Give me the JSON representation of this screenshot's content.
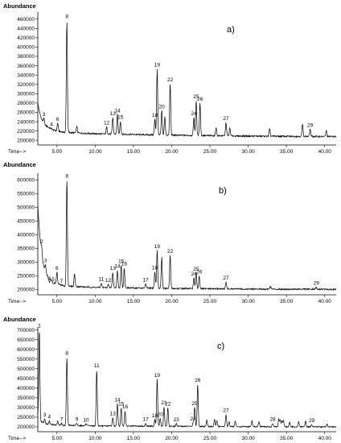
{
  "chart_data": [
    {
      "type": "line",
      "panel_label": "a)",
      "ylabel": "Abundance",
      "xlabel": "Time-->",
      "ylim": [
        190000,
        475000
      ],
      "xlim": [
        2.5,
        41.5
      ],
      "yticks": [
        200000,
        220000,
        240000,
        260000,
        280000,
        300000,
        320000,
        340000,
        360000,
        380000,
        400000,
        420000,
        440000,
        460000
      ],
      "ytick_labels": [
        "200000",
        "220000",
        "240000",
        "260000",
        "280000",
        "300000",
        "320000",
        "340000",
        "360000",
        "380000",
        "400000",
        "420000",
        "440000",
        "460000"
      ],
      "xticks": [
        5,
        10,
        15,
        20,
        25,
        30,
        35,
        40
      ],
      "xtick_labels": [
        "5.00",
        "10.00",
        "15.00",
        "20.00",
        "25.00",
        "30.00",
        "35.00",
        "40.00"
      ],
      "baseline": [
        [
          2.5,
          280000
        ],
        [
          2.7,
          262000
        ],
        [
          3.0,
          245000
        ],
        [
          3.5,
          232000
        ],
        [
          4.5,
          222000
        ],
        [
          6.0,
          217000
        ],
        [
          10.0,
          214000
        ],
        [
          20.0,
          211000
        ],
        [
          30.0,
          209000
        ],
        [
          41.5,
          208000
        ]
      ],
      "peaks": [
        {
          "label": "3",
          "x": 3.3,
          "y": 247000
        },
        {
          "label": "4",
          "x": 4.3,
          "y": 225000
        },
        {
          "label": "6",
          "x": 5.1,
          "y": 237000
        },
        {
          "label": "8",
          "x": 6.3,
          "y": 457000
        },
        {
          "label": "",
          "x": 7.6,
          "y": 230000
        },
        {
          "label": "12",
          "x": 11.5,
          "y": 229000
        },
        {
          "label": "13",
          "x": 12.3,
          "y": 249000
        },
        {
          "label": "14",
          "x": 12.9,
          "y": 255000
        },
        {
          "label": "15",
          "x": 13.3,
          "y": 241000
        },
        {
          "label": "18",
          "x": 17.8,
          "y": 245000
        },
        {
          "label": "19",
          "x": 18.1,
          "y": 353000
        },
        {
          "label": "20",
          "x": 18.7,
          "y": 263000
        },
        {
          "label": "",
          "x": 19.1,
          "y": 250000
        },
        {
          "label": "22",
          "x": 19.8,
          "y": 321000
        },
        {
          "label": "24",
          "x": 22.9,
          "y": 249000
        },
        {
          "label": "25",
          "x": 23.2,
          "y": 285000
        },
        {
          "label": "26",
          "x": 23.7,
          "y": 280000
        },
        {
          "label": "",
          "x": 25.8,
          "y": 228000
        },
        {
          "label": "27",
          "x": 27.1,
          "y": 238000
        },
        {
          "label": "",
          "x": 27.6,
          "y": 226000
        },
        {
          "label": "",
          "x": 32.8,
          "y": 224000
        },
        {
          "label": "",
          "x": 37.1,
          "y": 235000
        },
        {
          "label": "29",
          "x": 38.1,
          "y": 224000
        },
        {
          "label": "",
          "x": 40.2,
          "y": 221000
        }
      ]
    },
    {
      "type": "line",
      "panel_label": "b)",
      "ylabel": "Abundance",
      "xlabel": "Time-->",
      "ylim": [
        180000,
        625000
      ],
      "xlim": [
        2.5,
        41.5
      ],
      "yticks": [
        200000,
        250000,
        300000,
        350000,
        400000,
        450000,
        500000,
        550000,
        600000
      ],
      "ytick_labels": [
        "200000",
        "250000",
        "300000",
        "350000",
        "400000",
        "450000",
        "500000",
        "550000",
        "600000"
      ],
      "xticks": [
        5,
        10,
        15,
        20,
        25,
        30,
        35,
        40
      ],
      "xtick_labels": [
        "5.00",
        "10.00",
        "15.00",
        "20.00",
        "25.00",
        "30.00",
        "35.00",
        "40.00"
      ],
      "baseline": [
        [
          2.5,
          505000
        ],
        [
          2.7,
          420000
        ],
        [
          3.0,
          320000
        ],
        [
          3.5,
          260000
        ],
        [
          4.5,
          225000
        ],
        [
          6.0,
          212000
        ],
        [
          10.0,
          207000
        ],
        [
          20.0,
          203000
        ],
        [
          30.0,
          201000
        ],
        [
          41.5,
          200000
        ]
      ],
      "peaks": [
        {
          "label": "2",
          "x": 3.0,
          "y": 360000
        },
        {
          "label": "3",
          "x": 3.5,
          "y": 290000
        },
        {
          "label": "4",
          "x": 4.0,
          "y": 226000
        },
        {
          "label": "5",
          "x": 4.5,
          "y": 221000
        },
        {
          "label": "6",
          "x": 5.0,
          "y": 263000
        },
        {
          "label": "7",
          "x": 5.6,
          "y": 215000
        },
        {
          "label": "8",
          "x": 6.3,
          "y": 600000
        },
        {
          "label": "",
          "x": 7.3,
          "y": 258000
        },
        {
          "label": "11",
          "x": 10.8,
          "y": 223000
        },
        {
          "label": "12",
          "x": 11.7,
          "y": 218000
        },
        {
          "label": "13",
          "x": 12.3,
          "y": 262000
        },
        {
          "label": "14",
          "x": 12.9,
          "y": 270000
        },
        {
          "label": "15",
          "x": 13.4,
          "y": 287000
        },
        {
          "label": "16",
          "x": 13.8,
          "y": 278000
        },
        {
          "label": "17",
          "x": 16.6,
          "y": 220000
        },
        {
          "label": "18",
          "x": 17.8,
          "y": 264000
        },
        {
          "label": "19",
          "x": 18.1,
          "y": 342000
        },
        {
          "label": "",
          "x": 18.7,
          "y": 318000
        },
        {
          "label": "22",
          "x": 19.8,
          "y": 325000
        },
        {
          "label": "24",
          "x": 22.9,
          "y": 242000
        },
        {
          "label": "25",
          "x": 23.2,
          "y": 260000
        },
        {
          "label": "26",
          "x": 23.6,
          "y": 249000
        },
        {
          "label": "27",
          "x": 27.1,
          "y": 227000
        },
        {
          "label": "",
          "x": 32.9,
          "y": 212000
        },
        {
          "label": "29",
          "x": 38.9,
          "y": 208000
        }
      ]
    },
    {
      "type": "line",
      "panel_label": "c)",
      "ylabel": "Abundance",
      "xlabel": "Time-->",
      "ylim": [
        175000,
        715000
      ],
      "xlim": [
        2.5,
        41.5
      ],
      "yticks": [
        200000,
        250000,
        300000,
        350000,
        400000,
        450000,
        500000,
        550000,
        600000,
        650000,
        700000
      ],
      "ytick_labels": [
        "200000",
        "250000",
        "300000",
        "350000",
        "400000",
        "450000",
        "500000",
        "550000",
        "600000",
        "650000",
        "700000"
      ],
      "xticks": [
        5,
        10,
        15,
        20,
        25,
        30,
        35,
        40
      ],
      "xtick_labels": [
        "5.00",
        "10.00",
        "15.00",
        "20.00",
        "25.00",
        "30.00",
        "35.00",
        "40.00"
      ],
      "baseline": [
        [
          2.5,
          260000
        ],
        [
          2.8,
          232000
        ],
        [
          3.5,
          215000
        ],
        [
          5.0,
          209000
        ],
        [
          10.0,
          205000
        ],
        [
          20.0,
          203000
        ],
        [
          30.0,
          201000
        ],
        [
          41.5,
          200000
        ]
      ],
      "peaks": [
        {
          "label": "1",
          "x": 2.7,
          "y": 700000
        },
        {
          "label": "3",
          "x": 3.4,
          "y": 241000
        },
        {
          "label": "4",
          "x": 4.0,
          "y": 231000
        },
        {
          "label": "",
          "x": 5.1,
          "y": 229000
        },
        {
          "label": "7",
          "x": 5.6,
          "y": 218000
        },
        {
          "label": "8",
          "x": 6.3,
          "y": 560000
        },
        {
          "label": "9",
          "x": 7.6,
          "y": 218000
        },
        {
          "label": "10",
          "x": 8.8,
          "y": 215000
        },
        {
          "label": "11",
          "x": 10.2,
          "y": 495000
        },
        {
          "label": "13",
          "x": 12.3,
          "y": 248000
        },
        {
          "label": "14",
          "x": 12.9,
          "y": 318000
        },
        {
          "label": "15",
          "x": 13.4,
          "y": 297000
        },
        {
          "label": "16",
          "x": 13.9,
          "y": 282000
        },
        {
          "label": "17",
          "x": 16.6,
          "y": 219000
        },
        {
          "label": "18",
          "x": 17.8,
          "y": 238000
        },
        {
          "label": "19",
          "x": 18.1,
          "y": 445000
        },
        {
          "label": "20",
          "x": 18.5,
          "y": 243000
        },
        {
          "label": "21",
          "x": 19.0,
          "y": 303000
        },
        {
          "label": "22",
          "x": 19.5,
          "y": 298000
        },
        {
          "label": "23",
          "x": 20.6,
          "y": 217000
        },
        {
          "label": "24",
          "x": 22.8,
          "y": 221000
        },
        {
          "label": "25",
          "x": 23.0,
          "y": 300000
        },
        {
          "label": "26",
          "x": 23.4,
          "y": 420000
        },
        {
          "label": "",
          "x": 24.6,
          "y": 235000
        },
        {
          "label": "",
          "x": 25.6,
          "y": 240000
        },
        {
          "label": "",
          "x": 25.9,
          "y": 232000
        },
        {
          "label": "27",
          "x": 27.1,
          "y": 265000
        },
        {
          "label": "",
          "x": 27.5,
          "y": 228000
        },
        {
          "label": "",
          "x": 28.3,
          "y": 232000
        },
        {
          "label": "",
          "x": 30.5,
          "y": 232000
        },
        {
          "label": "",
          "x": 31.4,
          "y": 229000
        },
        {
          "label": "28",
          "x": 33.2,
          "y": 218000
        },
        {
          "label": "",
          "x": 34.0,
          "y": 240000
        },
        {
          "label": "",
          "x": 34.2,
          "y": 235000
        },
        {
          "label": "",
          "x": 34.4,
          "y": 228000
        },
        {
          "label": "",
          "x": 34.6,
          "y": 232000
        },
        {
          "label": "",
          "x": 35.4,
          "y": 224000
        },
        {
          "label": "",
          "x": 36.6,
          "y": 226000
        },
        {
          "label": "",
          "x": 37.5,
          "y": 229000
        },
        {
          "label": "29",
          "x": 38.3,
          "y": 212000
        },
        {
          "label": "",
          "x": 40.3,
          "y": 216000
        }
      ]
    }
  ]
}
